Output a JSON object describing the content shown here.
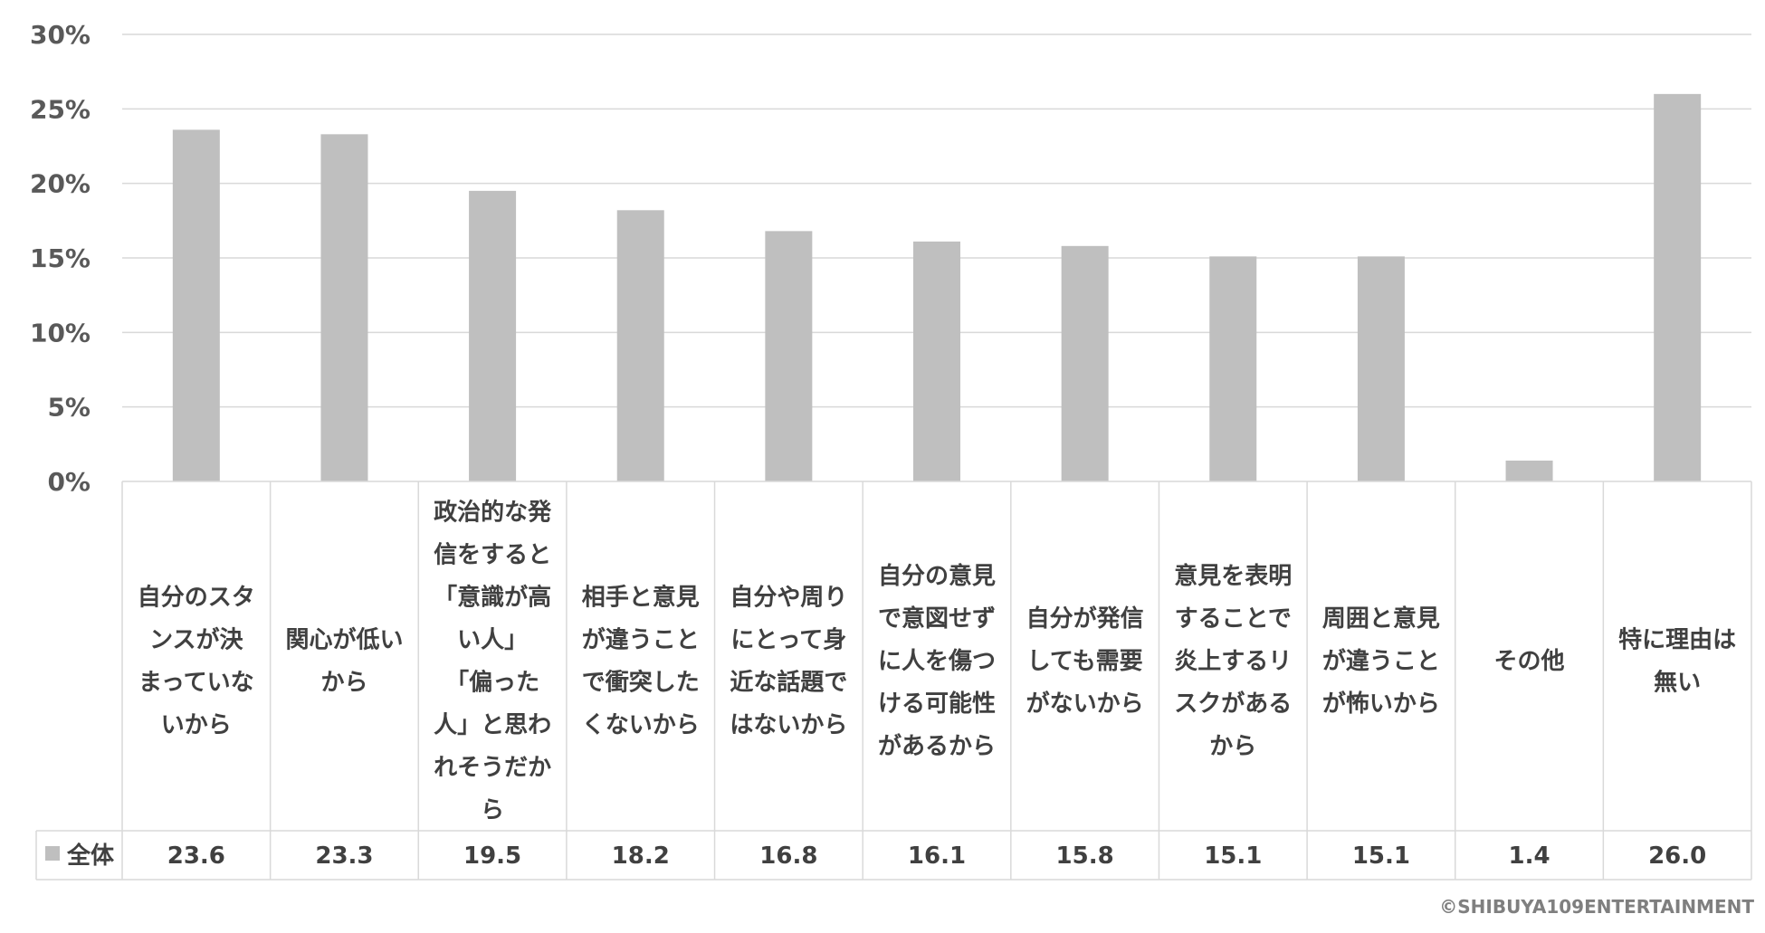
{
  "chart_data": {
    "type": "bar",
    "categories": [
      [
        "自分のスタ",
        "ンスが決",
        "まっていな",
        "いから"
      ],
      [
        "関心が低い",
        "から"
      ],
      [
        "政治的な発",
        "信をすると",
        "「意識が高",
        "い人」",
        "「偏った",
        "人」と思わ",
        "れそうだか",
        "ら"
      ],
      [
        "相手と意見",
        "が違うこと",
        "で衝突した",
        "くないから"
      ],
      [
        "自分や周り",
        "にとって身",
        "近な話題で",
        "はないから"
      ],
      [
        "自分の意見",
        "で意図せず",
        "に人を傷つ",
        "ける可能性",
        "があるから"
      ],
      [
        "自分が発信",
        "しても需要",
        "がないから"
      ],
      [
        "意見を表明",
        "することで",
        "炎上するリ",
        "スクがある",
        "から"
      ],
      [
        "周囲と意見",
        "が違うこと",
        "が怖いから"
      ],
      [
        "その他"
      ],
      [
        "特に理由は",
        "無い"
      ]
    ],
    "series": [
      {
        "name": "全体",
        "values": [
          23.6,
          23.3,
          19.5,
          18.2,
          16.8,
          16.1,
          15.8,
          15.1,
          15.1,
          1.4,
          26.0
        ],
        "value_labels": [
          "23.6",
          "23.3",
          "19.5",
          "18.2",
          "16.8",
          "16.1",
          "15.8",
          "15.1",
          "15.1",
          "1.4",
          "26.0"
        ]
      }
    ],
    "ylim": [
      0,
      30
    ],
    "yticks": [
      "0%",
      "5%",
      "10%",
      "15%",
      "20%",
      "25%",
      "30%"
    ],
    "grid": true,
    "legend": "data-table-left",
    "bar_color": "#bfbfbf",
    "grid_color": "#d9d9d9"
  },
  "copyright": "©SHIBUYA109ENTERTAINMENT"
}
